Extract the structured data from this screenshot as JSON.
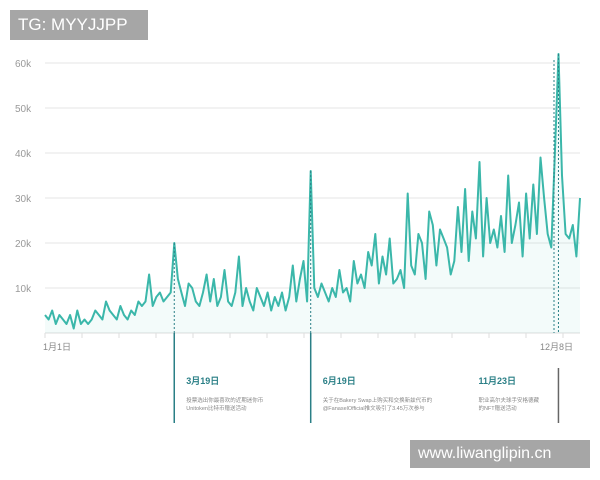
{
  "watermarks": {
    "top": "TG: MYYJJPP",
    "bottom": "www.liwanglipin.cn"
  },
  "chart_data": {
    "type": "line",
    "color": "#3bb7aa",
    "y_ticks": [
      "10k",
      "20k",
      "30k",
      "40k",
      "50k",
      "60k"
    ],
    "ylim": [
      0,
      60000
    ],
    "grid": true,
    "x_start_label": "1月1日",
    "x_end_label": "12月8日",
    "values": [
      4,
      3,
      5,
      2,
      4,
      3,
      2,
      4,
      1,
      5,
      2,
      3,
      2,
      3,
      5,
      4,
      3,
      7,
      5,
      4,
      3,
      6,
      4,
      3,
      5,
      4,
      7,
      6,
      7,
      13,
      6,
      8,
      9,
      7,
      8,
      9,
      20,
      12,
      9,
      6,
      11,
      10,
      7,
      6,
      9,
      13,
      7,
      12,
      6,
      8,
      14,
      7,
      6,
      9,
      17,
      6,
      10,
      7,
      5,
      10,
      8,
      6,
      9,
      5,
      8,
      6,
      9,
      5,
      8,
      15,
      7,
      12,
      16,
      7,
      36,
      10,
      8,
      11,
      9,
      7,
      10,
      8,
      14,
      9,
      10,
      7,
      16,
      11,
      13,
      10,
      18,
      15,
      22,
      11,
      17,
      13,
      21,
      11,
      12,
      14,
      10,
      31,
      15,
      13,
      22,
      20,
      12,
      27,
      24,
      15,
      23,
      21,
      19,
      13,
      16,
      28,
      18,
      32,
      16,
      27,
      21,
      38,
      17,
      30,
      20,
      23,
      19,
      26,
      18,
      35,
      20,
      24,
      29,
      17,
      31,
      21,
      33,
      22,
      39,
      30,
      22,
      19,
      40,
      62,
      35,
      22,
      21,
      24,
      17,
      30
    ],
    "annotations": [
      {
        "index": 36,
        "date": "3月19日",
        "text": [
          "投票选出你最喜欢的近期迷你币",
          "Unitoken比特币赠送活动"
        ]
      },
      {
        "index": 74,
        "date": "6月19日",
        "text": [
          "关于在Bakery Swap上购买和交换新兹代币的",
          "@FanaselOfficial推文吸引了3.45万次参与"
        ]
      },
      {
        "index": 143,
        "date": "11月23日",
        "text": [
          "职业高尔夫球手安格德藏",
          "的NFT赠送活动"
        ]
      }
    ]
  }
}
